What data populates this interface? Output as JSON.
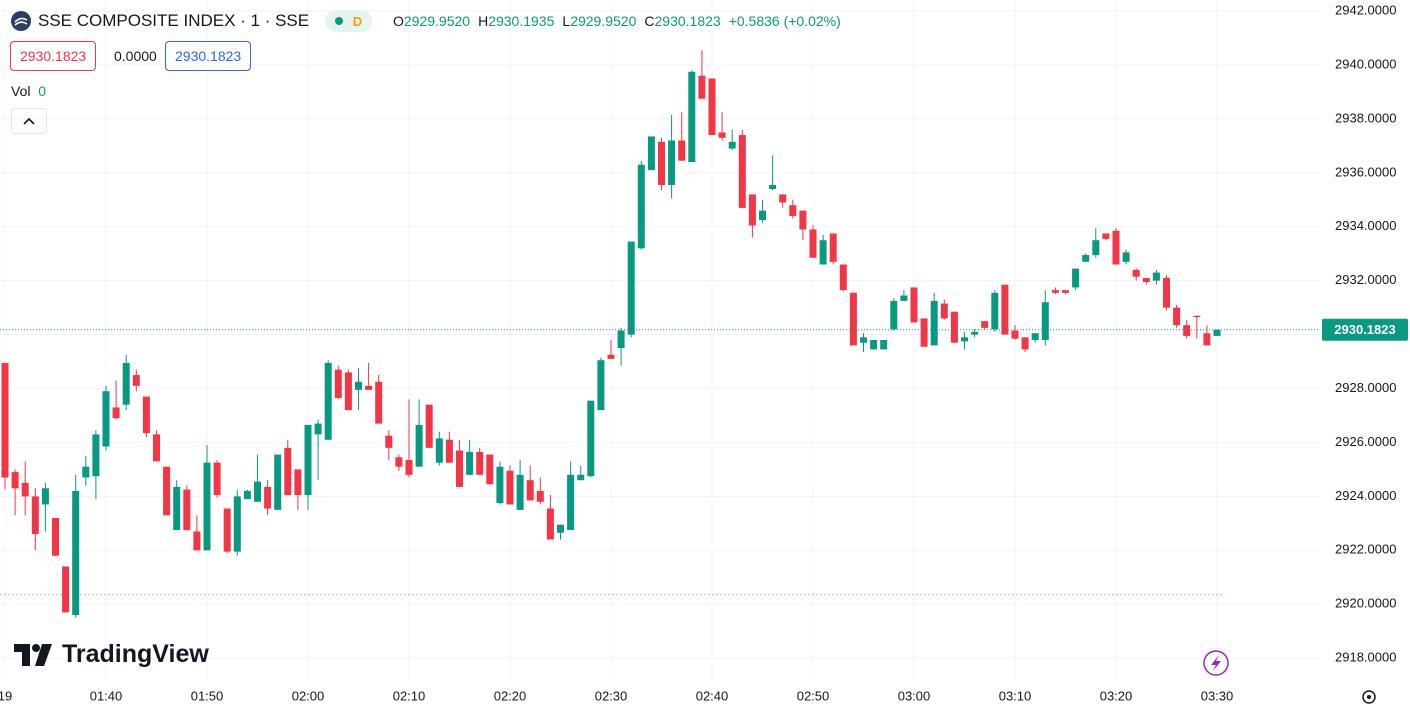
{
  "header": {
    "symbol": "SSE COMPOSITE INDEX · 1 · SSE",
    "badge": "D",
    "ohlc": [
      [
        "O",
        "2929.9520"
      ],
      [
        "H",
        "2930.1935"
      ],
      [
        "L",
        "2929.9520"
      ],
      [
        "C",
        "2930.1823"
      ]
    ],
    "change": "+0.5836 (+0.02%)",
    "bid": "2930.1823",
    "spread": "0.0000",
    "ask": "2930.1823",
    "volume_label": "Vol",
    "volume": "0"
  },
  "watermark": "TradingView",
  "chart_data": {
    "type": "candlestick",
    "categories": [
      "19",
      null,
      null,
      null,
      null,
      null,
      null,
      null,
      null,
      null,
      "01:40",
      null,
      null,
      null,
      null,
      null,
      null,
      null,
      null,
      null,
      "01:50",
      null,
      null,
      null,
      null,
      null,
      null,
      null,
      null,
      null,
      "02:00",
      null,
      null,
      null,
      null,
      null,
      null,
      null,
      null,
      null,
      "02:10",
      null,
      null,
      null,
      null,
      null,
      null,
      null,
      null,
      null,
      "02:20",
      null,
      null,
      null,
      null,
      null,
      null,
      null,
      null,
      null,
      "02:30",
      null,
      null,
      null,
      null,
      null,
      null,
      null,
      null,
      null,
      "02:40",
      null,
      null,
      null,
      null,
      null,
      null,
      null,
      null,
      null,
      "02:50",
      null,
      null,
      null,
      null,
      null,
      null,
      null,
      null,
      null,
      "03:00",
      null,
      null,
      null,
      null,
      null,
      null,
      null,
      null,
      null,
      "03:10",
      null,
      null,
      null,
      null,
      null,
      null,
      null,
      null,
      null,
      "03:20",
      null,
      null,
      null,
      null,
      null,
      null,
      null,
      null,
      null,
      "03:30"
    ],
    "open": [
      2928.95,
      2924.9,
      2924.5,
      2924.0,
      2923.7,
      2923.2,
      2921.4,
      2919.6,
      2924.7,
      2924.75,
      2925.85,
      2927.3,
      2927.4,
      2928.5,
      2927.7,
      2926.3,
      2925.1,
      2922.75,
      2924.25,
      2922.7,
      2922.0,
      2925.25,
      2923.55,
      2921.95,
      2923.9,
      2923.8,
      2924.35,
      2923.5,
      2925.8,
      2925.0,
      2924.05,
      2926.3,
      2926.1,
      2928.7,
      2928.6,
      2927.95,
      2928.1,
      2928.25,
      2926.25,
      2925.45,
      2925.35,
      2925.1,
      2927.4,
      2925.25,
      2926.1,
      2925.7,
      2924.8,
      2925.65,
      2925.55,
      2923.75,
      2924.95,
      2923.5,
      2924.6,
      2924.2,
      2923.55,
      2922.65,
      2922.75,
      2924.6,
      2924.75,
      2927.2,
      2929.25,
      2929.5,
      2930.0,
      2933.2,
      2936.1,
      2937.15,
      2935.55,
      2937.2,
      2936.4,
      2939.6,
      2939.5,
      2937.5,
      2936.9,
      2937.4,
      2935.2,
      2934.25,
      2935.4,
      2935.2,
      2934.8,
      2934.6,
      2933.9,
      2932.6,
      2933.75,
      2932.6,
      2931.55,
      2929.7,
      2929.45,
      2929.45,
      2930.2,
      2931.25,
      2931.75,
      2930.6,
      2929.6,
      2931.15,
      2930.85,
      2929.75,
      2930.0,
      2930.5,
      2930.2,
      2931.85,
      2930.15,
      2929.9,
      2929.8,
      2929.8,
      2931.65,
      2931.65,
      2931.75,
      2932.7,
      2932.95,
      2933.75,
      2933.85,
      2932.7,
      2932.4,
      2932.1,
      2932.0,
      2932.1,
      2931.0,
      2930.35,
      2930.7,
      2930.05,
      2929.952
    ],
    "high": [
      2928.95,
      2925.0,
      2925.3,
      2924.3,
      2924.5,
      2923.2,
      2921.4,
      2924.8,
      2925.5,
      2926.45,
      2928.1,
      2928.3,
      2929.25,
      2928.7,
      2927.7,
      2926.45,
      2925.1,
      2924.6,
      2924.4,
      2923.3,
      2925.9,
      2925.35,
      2923.55,
      2924.25,
      2924.25,
      2925.55,
      2924.6,
      2925.55,
      2926.1,
      2925.0,
      2926.65,
      2926.85,
      2929.05,
      2928.85,
      2928.7,
      2928.75,
      2928.95,
      2928.5,
      2926.45,
      2925.55,
      2927.6,
      2927.6,
      2927.4,
      2926.4,
      2926.4,
      2926.1,
      2926.1,
      2925.8,
      2925.55,
      2925.3,
      2925.15,
      2925.35,
      2925.15,
      2924.7,
      2924.05,
      2922.95,
      2925.3,
      2925.15,
      2927.55,
      2929.15,
      2929.8,
      2930.25,
      2933.45,
      2936.45,
      2937.35,
      2937.3,
      2938.15,
      2938.25,
      2939.8,
      2940.55,
      2939.5,
      2938.25,
      2937.6,
      2937.6,
      2935.2,
      2935.0,
      2936.65,
      2935.2,
      2935.0,
      2934.6,
      2934.05,
      2933.7,
      2933.75,
      2932.6,
      2931.55,
      2930.05,
      2929.8,
      2929.8,
      2931.35,
      2931.65,
      2931.75,
      2930.6,
      2931.55,
      2931.3,
      2930.85,
      2930.1,
      2930.2,
      2930.5,
      2931.65,
      2931.85,
      2930.35,
      2929.9,
      2930.05,
      2931.65,
      2931.75,
      2931.65,
      2932.45,
      2933.0,
      2933.95,
      2933.75,
      2933.95,
      2933.15,
      2932.45,
      2932.1,
      2932.4,
      2932.2,
      2931.1,
      2930.55,
      2930.7,
      2930.35,
      2930.1935
    ],
    "low": [
      2924.25,
      2923.3,
      2923.3,
      2922.0,
      2922.7,
      2921.8,
      2919.7,
      2919.5,
      2924.4,
      2923.9,
      2925.7,
      2926.85,
      2927.2,
      2927.9,
      2926.2,
      2925.3,
      2923.3,
      2922.75,
      2922.75,
      2922.0,
      2922.0,
      2923.95,
      2921.9,
      2921.8,
      2923.9,
      2923.8,
      2923.3,
      2923.5,
      2924.05,
      2923.5,
      2923.5,
      2924.6,
      2926.1,
      2927.6,
      2927.2,
      2927.2,
      2927.95,
      2926.7,
      2925.35,
      2924.95,
      2924.7,
      2925.1,
      2925.8,
      2925.15,
      2925.25,
      2924.35,
      2924.8,
      2924.8,
      2924.45,
      2923.7,
      2923.7,
      2923.5,
      2923.85,
      2923.7,
      2922.4,
      2922.4,
      2922.75,
      2924.6,
      2924.7,
      2927.2,
      2929.1,
      2928.85,
      2929.9,
      2933.15,
      2936.1,
      2935.35,
      2935.05,
      2936.45,
      2936.4,
      2938.75,
      2937.4,
      2937.2,
      2936.85,
      2934.7,
      2933.6,
      2934.15,
      2935.35,
      2934.7,
      2934.3,
      2933.5,
      2932.85,
      2932.6,
      2932.6,
      2931.6,
      2929.6,
      2929.35,
      2929.45,
      2929.45,
      2930.15,
      2931.25,
      2930.45,
      2929.55,
      2929.6,
      2930.55,
      2929.7,
      2929.45,
      2929.9,
      2930.2,
      2930.1,
      2930.0,
      2929.8,
      2929.35,
      2929.7,
      2929.6,
      2931.5,
      2931.5,
      2931.65,
      2932.7,
      2932.85,
      2933.5,
      2932.6,
      2932.6,
      2932.0,
      2931.85,
      2931.85,
      2930.9,
      2930.25,
      2929.85,
      2929.85,
      2929.6,
      2929.952
    ],
    "close": [
      2924.7,
      2924.3,
      2924.0,
      2922.6,
      2924.3,
      2921.8,
      2919.7,
      2924.2,
      2925.1,
      2926.3,
      2927.9,
      2926.9,
      2928.95,
      2928.1,
      2926.35,
      2925.3,
      2923.3,
      2924.35,
      2922.75,
      2922.0,
      2925.25,
      2924.05,
      2921.95,
      2924.0,
      2924.2,
      2924.55,
      2923.55,
      2925.55,
      2924.05,
      2924.05,
      2926.65,
      2926.7,
      2928.95,
      2927.65,
      2927.2,
      2928.25,
      2927.95,
      2926.7,
      2925.8,
      2925.1,
      2924.8,
      2926.65,
      2925.8,
      2926.15,
      2925.25,
      2924.35,
      2925.65,
      2924.8,
      2924.45,
      2925.1,
      2923.7,
      2924.8,
      2923.85,
      2923.8,
      2922.4,
      2922.95,
      2924.8,
      2924.8,
      2927.55,
      2929.05,
      2929.1,
      2930.15,
      2933.45,
      2936.3,
      2937.35,
      2935.55,
      2937.2,
      2936.45,
      2939.75,
      2938.75,
      2937.4,
      2937.3,
      2937.15,
      2934.7,
      2934.05,
      2934.6,
      2935.55,
      2934.9,
      2934.4,
      2933.9,
      2932.85,
      2933.5,
      2932.7,
      2931.65,
      2929.6,
      2929.9,
      2929.8,
      2929.8,
      2931.25,
      2931.45,
      2930.45,
      2929.55,
      2931.25,
      2930.6,
      2929.7,
      2929.9,
      2930.1,
      2930.25,
      2931.55,
      2930.0,
      2929.85,
      2929.45,
      2930.05,
      2931.2,
      2931.55,
      2931.55,
      2932.45,
      2932.95,
      2933.5,
      2933.55,
      2932.6,
      2933.05,
      2932.15,
      2931.95,
      2932.3,
      2931.0,
      2930.35,
      2929.95,
      2930.65,
      2929.6,
      2930.1823
    ],
    "up_color": "#089981",
    "down_color": "#f23645",
    "ylim": [
      2917.19,
      2942.41
    ],
    "yticks": [
      {
        "value": 2918,
        "label": "2918.0000"
      },
      {
        "value": 2920,
        "label": "2920.0000"
      },
      {
        "value": 2922,
        "label": "2922.0000"
      },
      {
        "value": 2924,
        "label": "2924.0000"
      },
      {
        "value": 2926,
        "label": "2926.0000"
      },
      {
        "value": 2928,
        "label": "2928.0000"
      },
      {
        "value": 2930,
        "label": "2930.0000"
      },
      {
        "value": 2932,
        "label": "2932.0000"
      },
      {
        "value": 2934,
        "label": "2934.0000"
      },
      {
        "value": 2936,
        "label": "2936.0000"
      },
      {
        "value": 2938,
        "label": "2938.0000"
      },
      {
        "value": 2940,
        "label": "2940.0000"
      },
      {
        "value": 2942,
        "label": "2942.0000"
      }
    ],
    "grid": true,
    "price_line": {
      "value": 2930.1823,
      "label": "2930.1823"
    },
    "baseline": 2920.35
  }
}
